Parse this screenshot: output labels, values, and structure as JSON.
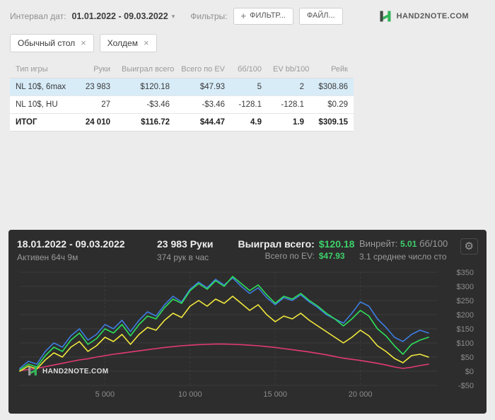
{
  "header": {
    "date_label": "Интервал дат:",
    "date_value": "01.01.2022 - 09.03.2022",
    "filters_label": "Фильтры:",
    "filter_button": "ФИЛЬТР...",
    "file_button": "ФАЙЛ...",
    "logo_text": "HAND2NOTE.COM"
  },
  "tabs": [
    {
      "label": "Обычный стол"
    },
    {
      "label": "Холдем"
    }
  ],
  "table": {
    "columns": [
      "Тип игры",
      "Руки",
      "Выиграл всего",
      "Всего по EV",
      "бб/100",
      "EV bb/100",
      "Рейк"
    ],
    "rows": [
      {
        "cells": [
          "NL 10$, 6max",
          "23 983",
          "$120.18",
          "$47.93",
          "5",
          "2",
          "$308.86"
        ]
      },
      {
        "cells": [
          "NL 10$, HU",
          "27",
          "-$3.46",
          "-$3.46",
          "-128.1",
          "-128.1",
          "$0.29"
        ]
      },
      {
        "cells": [
          "ИТОГ",
          "24 010",
          "$116.72",
          "$44.47",
          "4.9",
          "1.9",
          "$309.15"
        ]
      }
    ]
  },
  "panel": {
    "date_range": "18.01.2022 - 09.03.2022",
    "active_time": "Активен 64ч 9м",
    "hands": "23 983 Руки",
    "hands_per_hour": "374 рук в час",
    "won_label": "Выиграл всего:",
    "won_value": "$120.18",
    "ev_label": "Всего по EV:",
    "ev_value": "$47.93",
    "winrate_label": "Винрейт:",
    "winrate_value": "5.01",
    "winrate_unit": "бб/100",
    "avg_tables_text": "3.1 среднее число сто",
    "logo_text": "HAND2NOTE.COM"
  },
  "colors": {
    "accent_green": "#2bb24c",
    "negative_red": "#e23b3b",
    "row_highlight": "#d8ecf8",
    "panel_bg": "#2d2d2d",
    "panel_green": "#3ed06a",
    "grid": "#3c3c3c",
    "axis_text": "#8c8c8c"
  },
  "chart_data": {
    "type": "line",
    "title": "",
    "xlabel": "",
    "ylabel": "",
    "xlim": [
      0,
      24500
    ],
    "ylim": [
      -50,
      350
    ],
    "grid": true,
    "legend": false,
    "x_step": 500,
    "xticks": [
      {
        "v": 5000,
        "label": "5 000"
      },
      {
        "v": 10000,
        "label": "10 000"
      },
      {
        "v": 15000,
        "label": "15 000"
      },
      {
        "v": 20000,
        "label": "20 000"
      }
    ],
    "yticks": [
      {
        "v": 350,
        "label": "$350"
      },
      {
        "v": 300,
        "label": "$300"
      },
      {
        "v": 250,
        "label": "$250"
      },
      {
        "v": 200,
        "label": "$200"
      },
      {
        "v": 150,
        "label": "$150"
      },
      {
        "v": 100,
        "label": "$100"
      },
      {
        "v": 50,
        "label": "$50"
      },
      {
        "v": 0,
        "label": "$0"
      },
      {
        "v": -50,
        "label": "-$50"
      }
    ],
    "series": [
      {
        "name": "red-line",
        "color": "#e23a74",
        "values": [
          2,
          6,
          10,
          16,
          22,
          28,
          34,
          40,
          44,
          50,
          55,
          60,
          64,
          68,
          72,
          76,
          80,
          84,
          87,
          90,
          92,
          94,
          95,
          96,
          96,
          95,
          94,
          92,
          90,
          87,
          84,
          80,
          76,
          72,
          68,
          63,
          58,
          52,
          46,
          42,
          38,
          33,
          28,
          22,
          15,
          10,
          14,
          20,
          25
        ]
      },
      {
        "name": "yellow-line",
        "color": "#f2ea3d",
        "values": [
          0,
          18,
          8,
          40,
          65,
          50,
          85,
          105,
          70,
          90,
          120,
          105,
          130,
          95,
          130,
          155,
          145,
          180,
          205,
          190,
          230,
          250,
          230,
          255,
          240,
          265,
          240,
          215,
          235,
          200,
          175,
          195,
          185,
          205,
          180,
          160,
          140,
          120,
          100,
          120,
          145,
          125,
          90,
          70,
          45,
          30,
          55,
          60,
          50
        ]
      },
      {
        "name": "blue-line",
        "color": "#3d7de0",
        "values": [
          10,
          35,
          25,
          70,
          100,
          85,
          125,
          150,
          110,
          130,
          165,
          150,
          180,
          140,
          180,
          210,
          195,
          235,
          265,
          245,
          290,
          315,
          295,
          325,
          305,
          330,
          300,
          275,
          295,
          260,
          235,
          260,
          250,
          270,
          245,
          225,
          200,
          185,
          170,
          205,
          245,
          230,
          185,
          155,
          120,
          105,
          130,
          145,
          135
        ]
      },
      {
        "name": "green-line",
        "color": "#2de05a",
        "values": [
          5,
          25,
          15,
          55,
          85,
          70,
          110,
          135,
          95,
          115,
          150,
          135,
          165,
          125,
          165,
          195,
          185,
          225,
          255,
          240,
          285,
          310,
          290,
          320,
          300,
          335,
          310,
          285,
          305,
          270,
          240,
          265,
          255,
          275,
          250,
          230,
          205,
          185,
          160,
          185,
          215,
          195,
          150,
          125,
          90,
          60,
          95,
          110,
          120
        ]
      }
    ]
  }
}
